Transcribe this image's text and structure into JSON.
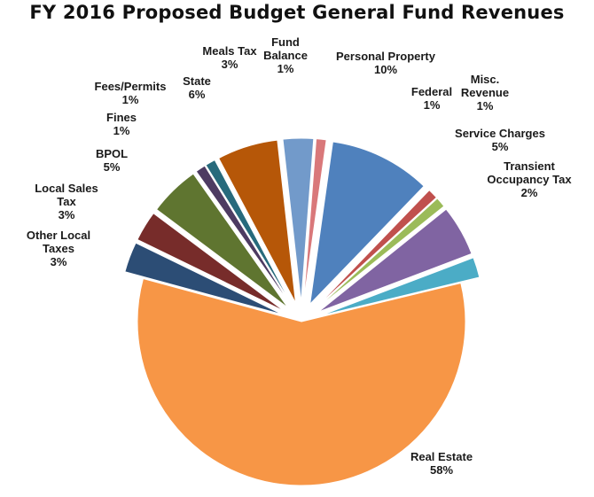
{
  "chart_data": {
    "type": "pie",
    "title": "FY 2016 Proposed Budget General Fund Revenues",
    "exploded": true,
    "slices": [
      {
        "label": "Personal Property",
        "value": 10,
        "display": "10%",
        "color": "#4f81bd"
      },
      {
        "label": "Federal",
        "value": 1,
        "display": "1%",
        "color": "#c0504d"
      },
      {
        "label": "Misc. Revenue",
        "value": 1,
        "display": "1%",
        "color": "#9bbb59"
      },
      {
        "label": "Service Charges",
        "value": 5,
        "display": "5%",
        "color": "#8064a2"
      },
      {
        "label": "Transient Occupancy Tax",
        "value": 2,
        "display": "2%",
        "color": "#4bacc6"
      },
      {
        "label": "Real Estate",
        "value": 58,
        "display": "58%",
        "color": "#f79646"
      },
      {
        "label": "Other Local Taxes",
        "value": 3,
        "display": "3%",
        "color": "#2c4d75"
      },
      {
        "label": "Local Sales Tax",
        "value": 3,
        "display": "3%",
        "color": "#772c2a"
      },
      {
        "label": "BPOL",
        "value": 5,
        "display": "5%",
        "color": "#5f7530"
      },
      {
        "label": "Fines",
        "value": 1,
        "display": "1%",
        "color": "#4d3b62"
      },
      {
        "label": "Fees/Permits",
        "value": 1,
        "display": "1%",
        "color": "#276a7c"
      },
      {
        "label": "State",
        "value": 6,
        "display": "6%",
        "color": "#b65708"
      },
      {
        "label": "Meals Tax",
        "value": 3,
        "display": "3%",
        "color": "#729aca"
      },
      {
        "label": "Fund Balance",
        "value": 1,
        "display": "1%",
        "color": "#d9787a"
      }
    ]
  }
}
